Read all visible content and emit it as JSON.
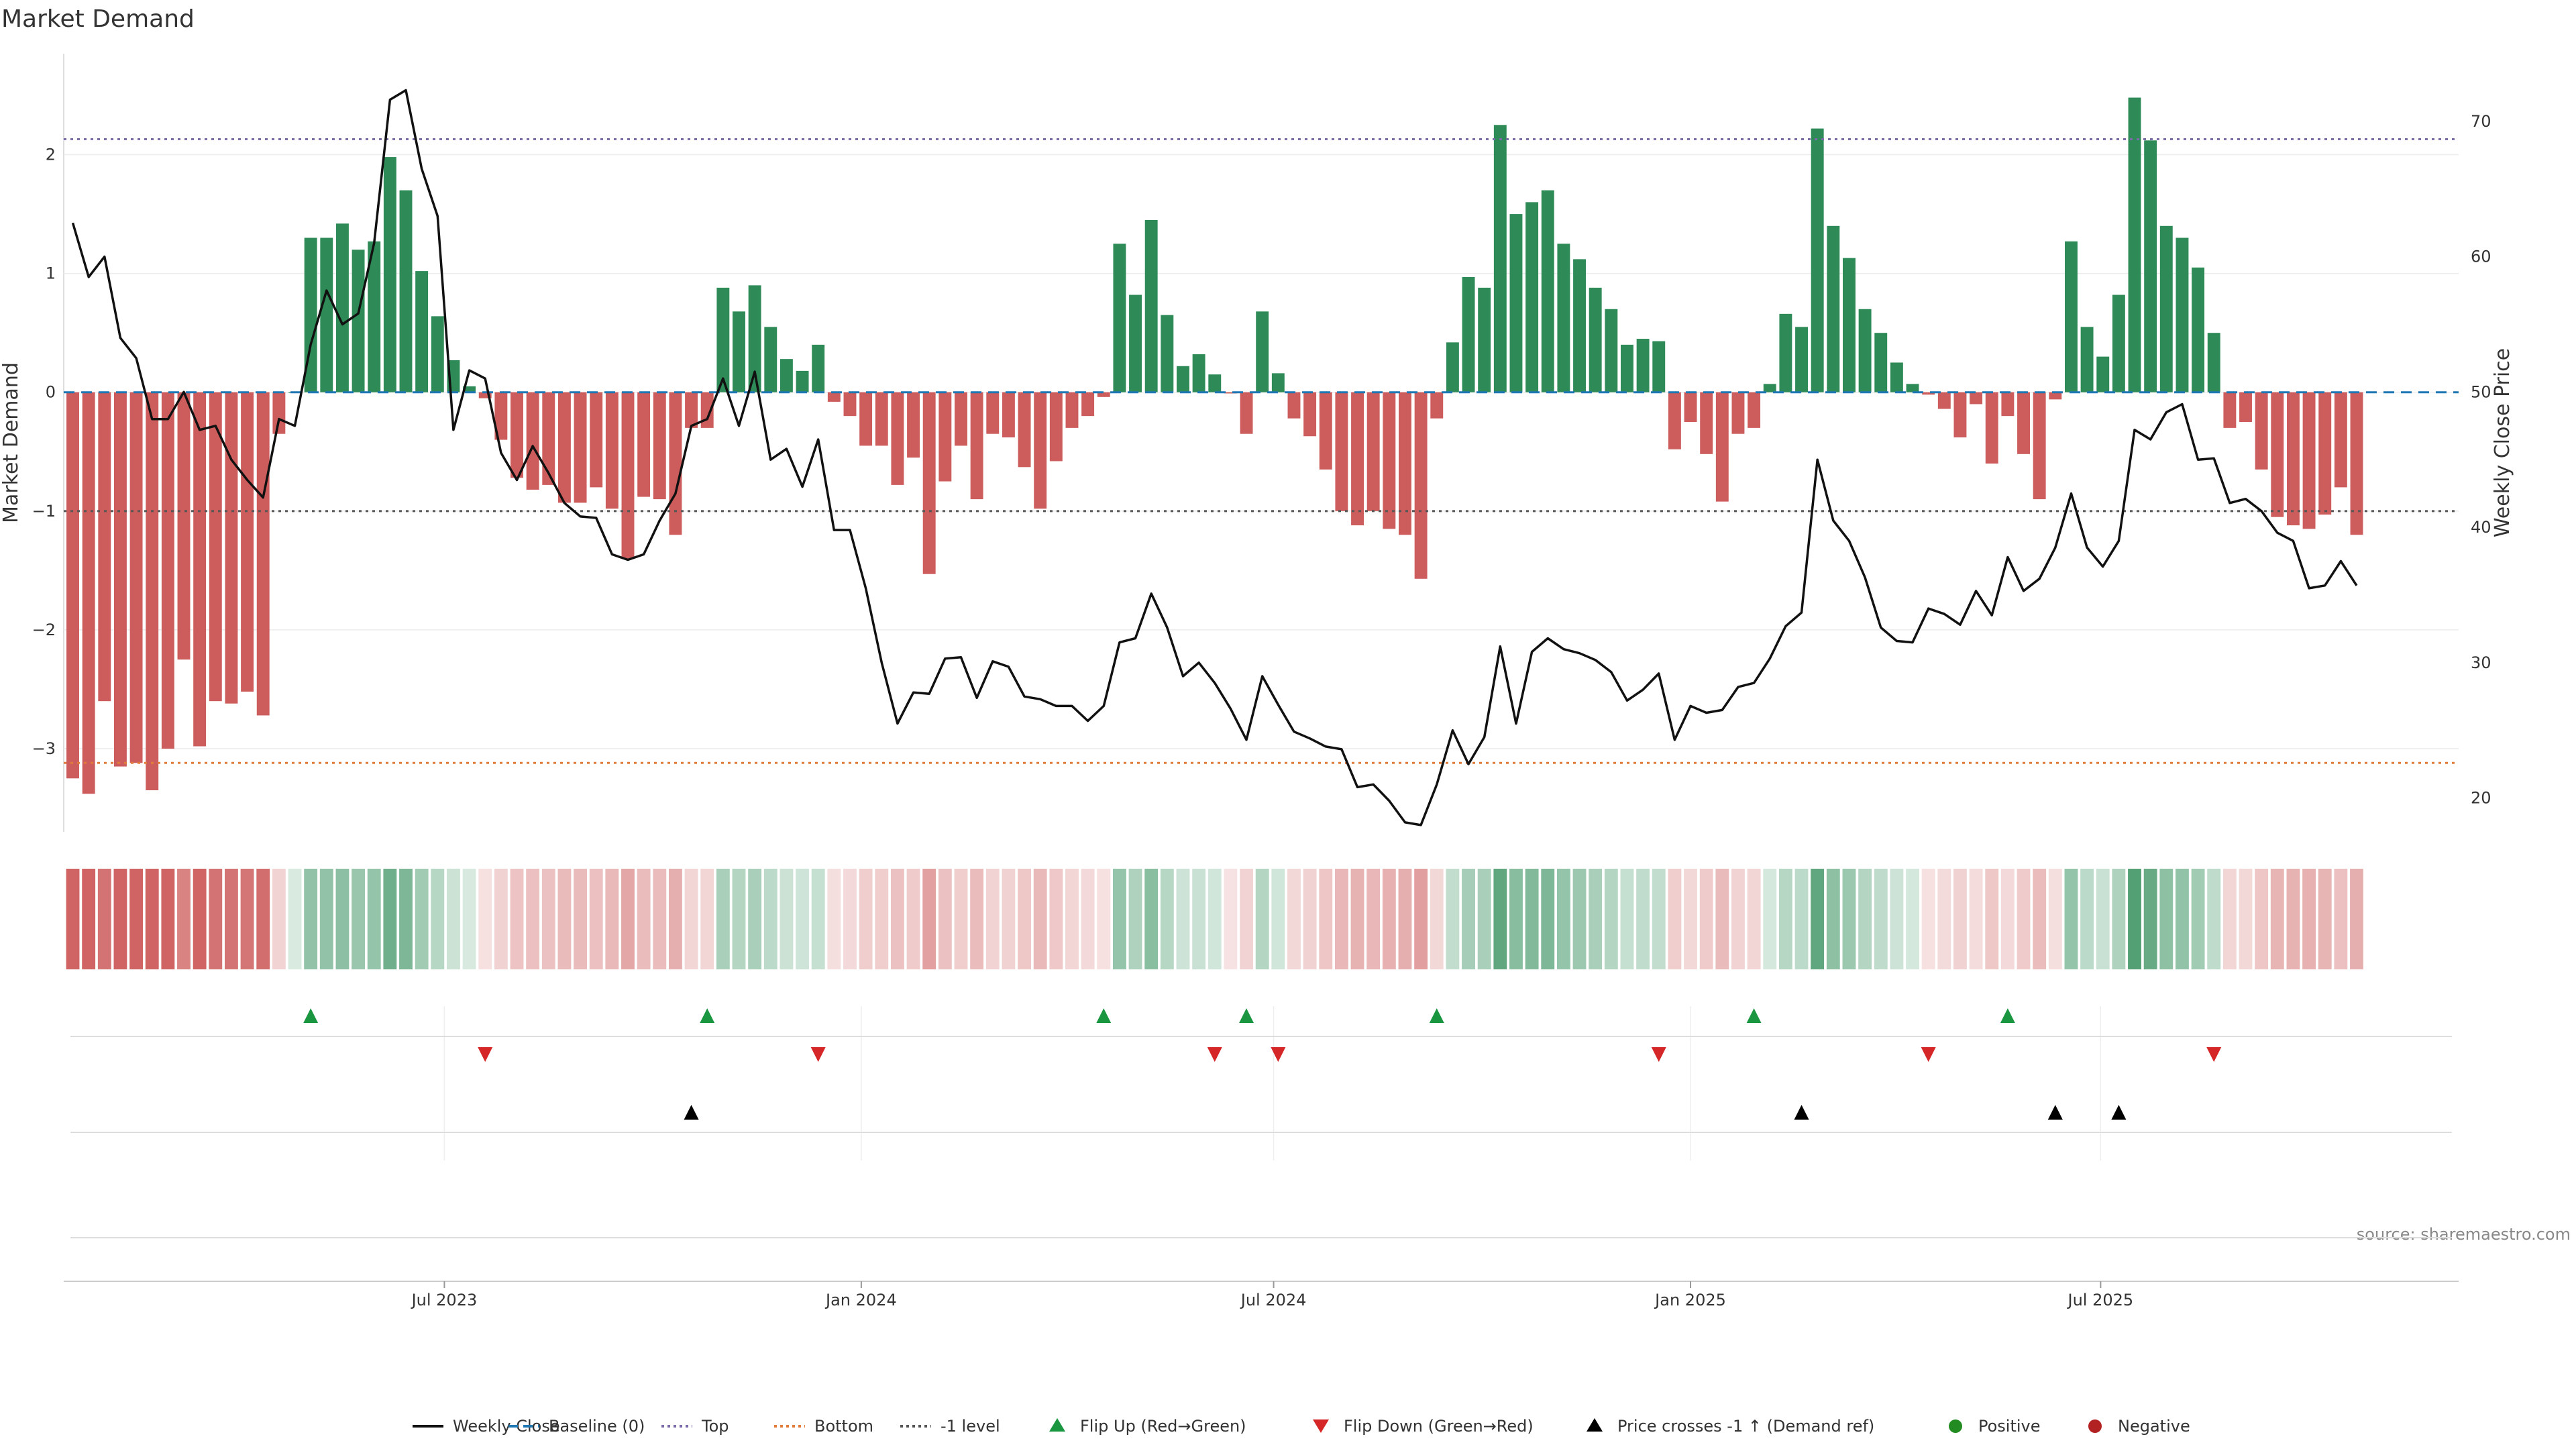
{
  "chart_data": {
    "type": "bar",
    "title": "Market Demand",
    "source": "source: sharemaestro.com",
    "ylabel": "Market Demand",
    "y2label": "Weekly Close Price",
    "ylim": [
      -3.7,
      2.85
    ],
    "y2lim": [
      17.5,
      75
    ],
    "yticks": [
      2,
      1,
      0,
      -1,
      -2,
      -3
    ],
    "ytick_labels": [
      "2",
      "1",
      "0",
      "−1",
      "−2",
      "−3"
    ],
    "y2ticks": [
      70,
      60,
      50,
      40,
      30,
      20
    ],
    "y2tick_labels": [
      "70",
      "60",
      "50",
      "40",
      "30",
      "20"
    ],
    "xlim": [
      "2023-01-14",
      "2025-12-06"
    ],
    "xticks": [
      {
        "date": "2023-07-01",
        "label": "Jul 2023"
      },
      {
        "date": "2024-01-01",
        "label": "Jan 2024"
      },
      {
        "date": "2024-07-01",
        "label": "Jul 2024"
      },
      {
        "date": "2025-01-01",
        "label": "Jan 2025"
      },
      {
        "date": "2025-07-01",
        "label": "Jul 2025"
      }
    ],
    "start_date": "2023-01-18",
    "week_step_days": 7,
    "levels": {
      "top": 2.13,
      "bottom": -3.12,
      "minus_one": -1.0
    },
    "colors": {
      "positive": "#2e8b57",
      "negative": "#cd5c5c",
      "price": "#111111",
      "top": "#7b6ba8",
      "bottom": "#e07b39",
      "minus_one": "#555555",
      "baseline": "#1f77b4",
      "flip_up": "#1a9641",
      "flip_down": "#d62728",
      "cross": "#000000",
      "pos_dot": "#228b22",
      "neg_dot": "#b22222"
    },
    "series": [
      {
        "name": "Market Demand",
        "values": [
          -3.25,
          -3.38,
          -2.6,
          -3.15,
          -3.12,
          -3.35,
          -3.0,
          -2.25,
          -2.98,
          -2.6,
          -2.62,
          -2.52,
          -2.72,
          -0.35,
          0,
          1.3,
          1.3,
          1.42,
          1.2,
          1.27,
          1.98,
          1.7,
          1.02,
          0.64,
          0.27,
          0.05,
          -0.05,
          -0.4,
          -0.72,
          -0.82,
          -0.78,
          -0.93,
          -0.93,
          -0.8,
          -0.98,
          -1.4,
          -0.88,
          -0.9,
          -1.2,
          -0.3,
          -0.3,
          0.88,
          0.68,
          0.9,
          0.55,
          0.28,
          0.18,
          0.4,
          -0.08,
          -0.2,
          -0.45,
          -0.45,
          -0.78,
          -0.55,
          -1.53,
          -0.75,
          -0.45,
          -0.9,
          -0.35,
          -0.38,
          -0.63,
          -0.98,
          -0.58,
          -0.3,
          -0.2,
          -0.04,
          1.25,
          0.82,
          1.45,
          0.65,
          0.22,
          0.32,
          0.15,
          -0.01,
          -0.35,
          0.68,
          0.16,
          -0.22,
          -0.37,
          -0.65,
          -1.0,
          -1.12,
          -1.0,
          -1.15,
          -1.2,
          -1.57,
          -0.22,
          0.42,
          0.97,
          0.88,
          2.25,
          1.5,
          1.6,
          1.7,
          1.25,
          1.12,
          0.88,
          0.7,
          0.4,
          0.45,
          0.43,
          -0.48,
          -0.25,
          -0.52,
          -0.92,
          -0.35,
          -0.3,
          0.07,
          0.66,
          0.55,
          2.22,
          1.4,
          1.13,
          0.7,
          0.5,
          0.25,
          0.07,
          -0.02,
          -0.14,
          -0.38,
          -0.1,
          -0.6,
          -0.2,
          -0.52,
          -0.9,
          -0.06,
          1.27,
          0.55,
          0.3,
          0.82,
          2.48,
          2.12,
          1.4,
          1.3,
          1.05,
          0.5,
          -0.3,
          -0.25,
          -0.65,
          -1.05,
          -1.12,
          -1.15,
          -1.03,
          -0.8,
          -1.2
        ]
      },
      {
        "name": "Weekly Close",
        "values": [
          62.5,
          58.5,
          60,
          54,
          52.5,
          48,
          48,
          50,
          47.2,
          47.5,
          45,
          43.5,
          42.2,
          48,
          47.5,
          53.5,
          57.5,
          55,
          55.8,
          61,
          71.6,
          72.3,
          66.5,
          63,
          47.2,
          51.6,
          51,
          45.5,
          43.5,
          46,
          44,
          41.8,
          40.8,
          40.7,
          38,
          37.6,
          38,
          40.5,
          42.5,
          47.5,
          48,
          51,
          47.5,
          51.5,
          45,
          45.8,
          43,
          46.5,
          39.8,
          39.8,
          35.5,
          30,
          25.5,
          27.8,
          27.7,
          30.3,
          30.4,
          27.4,
          30.1,
          29.7,
          27.5,
          27.3,
          26.8,
          26.8,
          25.7,
          26.8,
          31.5,
          31.8,
          35.1,
          32.6,
          29,
          30,
          28.5,
          26.6,
          24.3,
          29,
          26.9,
          24.9,
          24.4,
          23.8,
          23.6,
          20.8,
          21.0,
          19.8,
          18.2,
          18.0,
          21.0,
          25.0,
          22.5,
          24.5,
          31.2,
          25.5,
          30.8,
          31.8,
          31.0,
          30.7,
          30.2,
          29.3,
          27.2,
          28.0,
          29.2,
          24.3,
          26.8,
          26.3,
          26.5,
          28.2,
          28.5,
          30.3,
          32.7,
          33.7,
          45,
          40.5,
          39,
          36.3,
          32.6,
          31.6,
          31.5,
          34,
          33.6,
          32.8,
          35.3,
          33.5,
          37.8,
          35.3,
          36.2,
          38.5,
          42.5,
          38.5,
          37.1,
          39,
          47.2,
          46.5,
          48.5,
          49.1,
          45,
          45.1,
          41.8,
          42.1,
          41.2,
          39.6,
          39.0,
          35.5,
          35.7,
          37.5,
          35.7
        ]
      }
    ],
    "heatmap_strip": {
      "note": "Colored strip of weekly demand, one cell per week"
    },
    "flip_up_weeks": [
      15,
      40,
      65,
      74,
      86,
      106,
      122
    ],
    "flip_down_weeks": [
      26,
      47,
      72,
      76,
      100,
      117,
      135
    ],
    "cross_up_weeks": [
      39,
      109,
      125,
      129
    ],
    "legend": [
      {
        "label": "Weekly Close",
        "kind": "solid-line",
        "color": "#111111"
      },
      {
        "label": "Baseline (0)",
        "kind": "dashed-line",
        "color": "#1f77b4"
      },
      {
        "label": "Top",
        "kind": "dotted-line",
        "color": "#7b6ba8"
      },
      {
        "label": "Bottom",
        "kind": "dotted-line",
        "color": "#e07b39"
      },
      {
        "label": "-1 level",
        "kind": "dotted-line",
        "color": "#555555"
      },
      {
        "label": "Flip Up (Red→Green)",
        "kind": "triangle-up",
        "color": "#1a9641"
      },
      {
        "label": "Flip Down (Green→Red)",
        "kind": "triangle-down",
        "color": "#d62728"
      },
      {
        "label": "Price crosses -1 ↑ (Demand ref)",
        "kind": "triangle-up",
        "color": "#000000"
      },
      {
        "label": "Positive",
        "kind": "dot",
        "color": "#228b22"
      },
      {
        "label": "Negative",
        "kind": "dot",
        "color": "#b22222"
      }
    ]
  }
}
